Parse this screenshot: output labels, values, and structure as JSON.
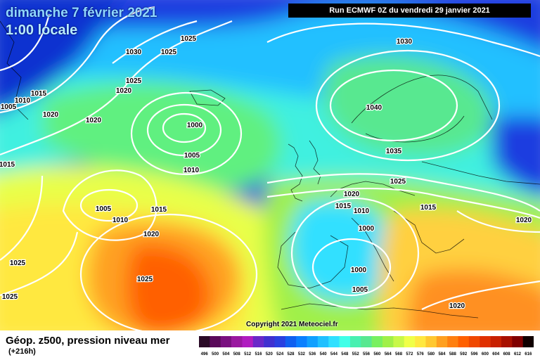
{
  "header": {
    "date": "dimanche 7 février 2021",
    "time": "1:00 locale",
    "run": "Run ECMWF 0Z du vendredi 29 janvier 2021"
  },
  "copyright": "Copyright 2021 Meteociel.fr",
  "footer": {
    "title": "Géop. z500, pression niveau mer",
    "subtitle": "(+216h)"
  },
  "isobar_labels": [
    {
      "text": "1025"
    },
    {
      "text": "1030"
    },
    {
      "text": "1025"
    },
    {
      "text": "1030"
    },
    {
      "text": "1025"
    },
    {
      "text": "1020"
    },
    {
      "text": "1015"
    },
    {
      "text": "1010"
    },
    {
      "text": "1005"
    },
    {
      "text": "1020"
    },
    {
      "text": "1020"
    },
    {
      "text": "1000"
    },
    {
      "text": "1005"
    },
    {
      "text": "1010"
    },
    {
      "text": "1015"
    },
    {
      "text": "1005"
    },
    {
      "text": "1010"
    },
    {
      "text": "1015"
    },
    {
      "text": "1020"
    },
    {
      "text": "1025"
    },
    {
      "text": "1025"
    },
    {
      "text": "1025"
    },
    {
      "text": "1040"
    },
    {
      "text": "1035"
    },
    {
      "text": "1025"
    },
    {
      "text": "1020"
    },
    {
      "text": "1015"
    },
    {
      "text": "1010"
    },
    {
      "text": "1015"
    },
    {
      "text": "1000"
    },
    {
      "text": "1000"
    },
    {
      "text": "1005"
    },
    {
      "text": "1020"
    },
    {
      "text": "1020"
    }
  ],
  "legend": {
    "values": [
      "496",
      "500",
      "504",
      "508",
      "512",
      "516",
      "520",
      "524",
      "528",
      "532",
      "536",
      "540",
      "544",
      "548",
      "552",
      "556",
      "560",
      "564",
      "568",
      "572",
      "576",
      "580",
      "584",
      "588",
      "592",
      "596",
      "600",
      "604",
      "608",
      "612",
      "616"
    ],
    "colors": [
      "#2a0a26",
      "#5a0a5a",
      "#7a1080",
      "#9a18a0",
      "#b01cc0",
      "#6a28c8",
      "#4030d0",
      "#2a40e0",
      "#1060f0",
      "#0a80ff",
      "#10a0ff",
      "#20c0ff",
      "#30e0ff",
      "#40ffe8",
      "#48f0b0",
      "#58e890",
      "#78f060",
      "#a0f048",
      "#c8f848",
      "#f0ff48",
      "#ffe840",
      "#ffc830",
      "#ffa020",
      "#ff8010",
      "#ff6000",
      "#f04800",
      "#e03000",
      "#c82000",
      "#a81000",
      "#800000",
      "#100000"
    ]
  }
}
